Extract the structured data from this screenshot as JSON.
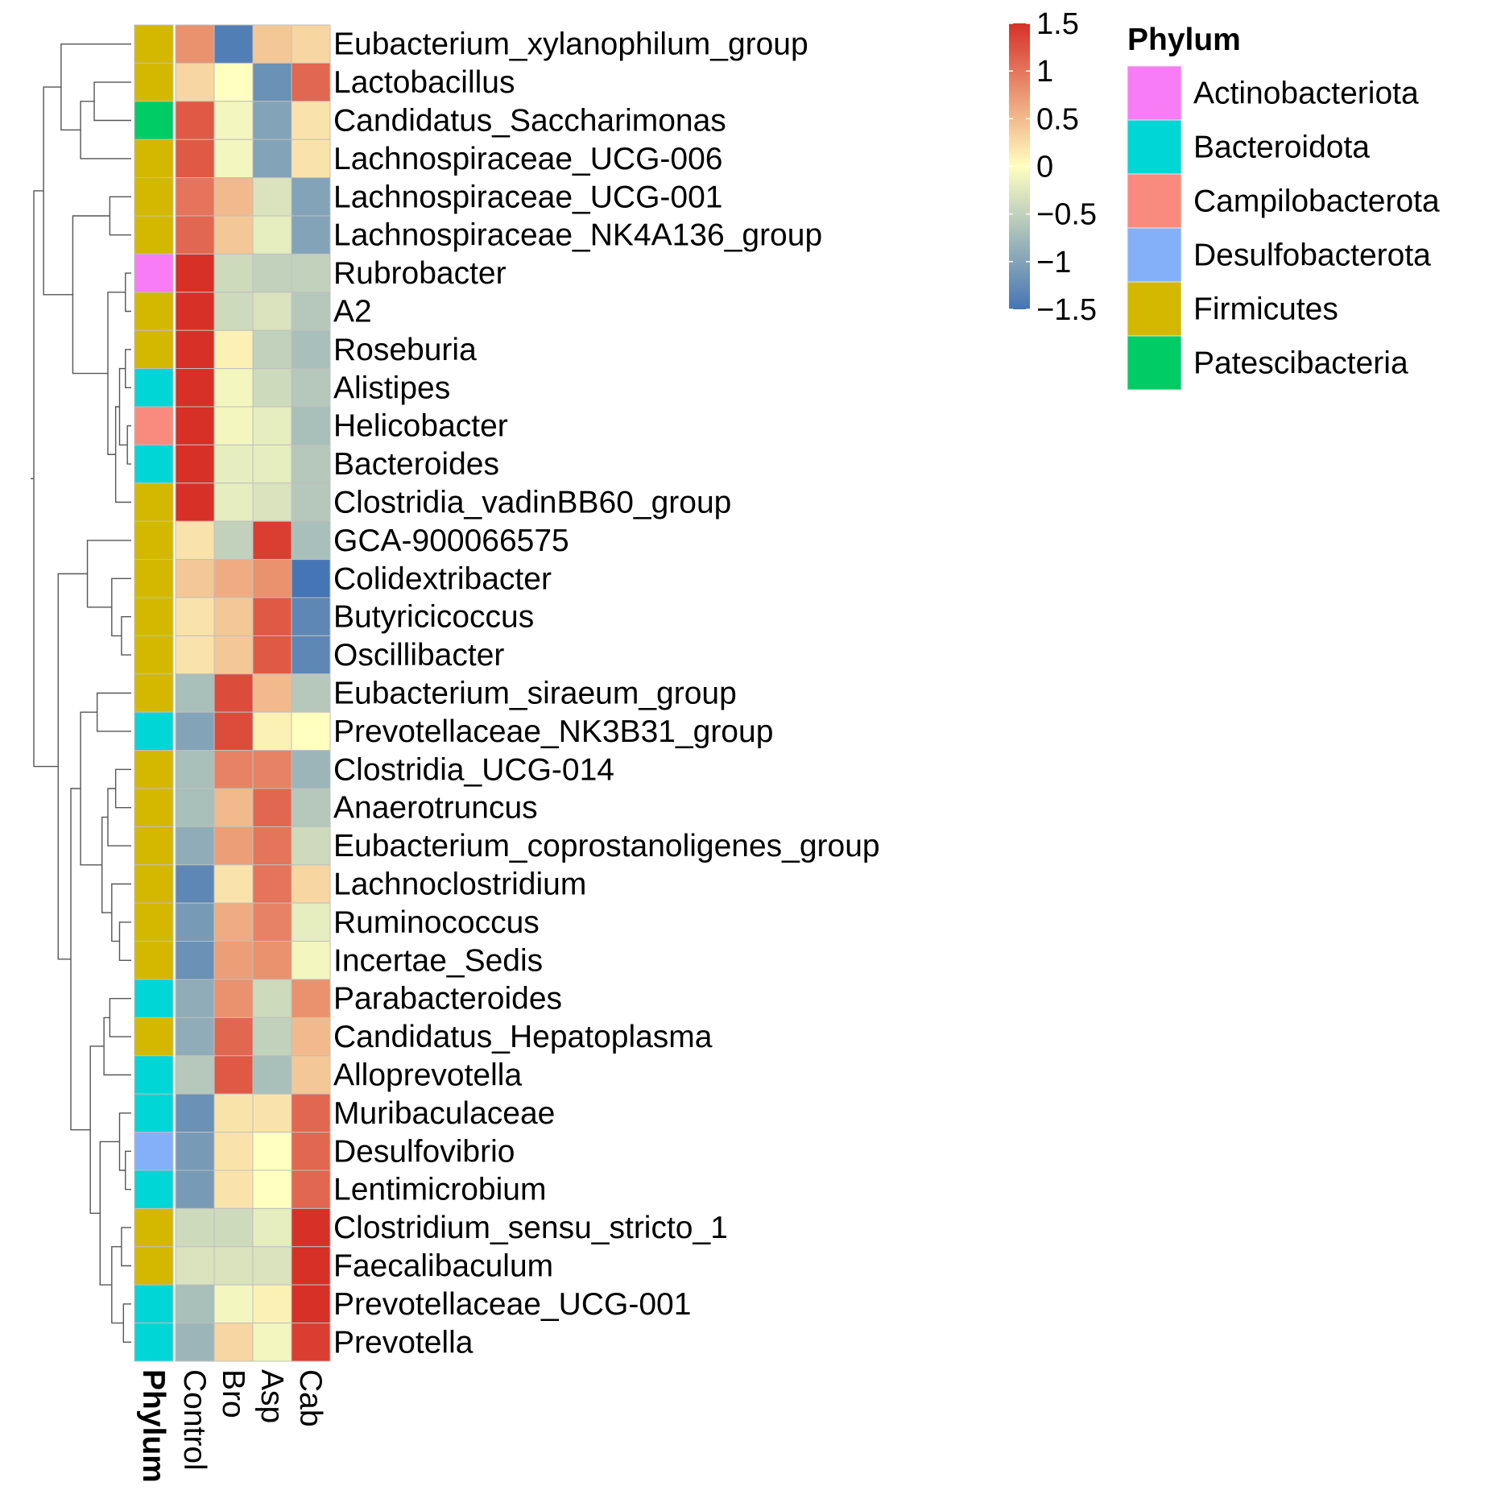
{
  "chart_data": {
    "type": "heatmap",
    "columns": [
      "Control",
      "Bro",
      "Asp",
      "Cab"
    ],
    "annotation_label": "Phylum",
    "rows": [
      {
        "name": "Eubacterium_xylanophilum_group",
        "phylum": "Firmicutes",
        "values": [
          0.8,
          -1.4,
          0.4,
          0.3
        ]
      },
      {
        "name": "Lactobacillus",
        "phylum": "Firmicutes",
        "values": [
          0.3,
          0.0,
          -1.2,
          1.1
        ]
      },
      {
        "name": "Candidatus_Saccharimonas",
        "phylum": "Patescibacteria",
        "values": [
          1.2,
          -0.1,
          -1.0,
          0.2
        ]
      },
      {
        "name": "Lachnospiraceae_UCG-006",
        "phylum": "Firmicutes",
        "values": [
          1.2,
          -0.1,
          -1.0,
          0.2
        ]
      },
      {
        "name": "Lachnospiraceae_UCG-001",
        "phylum": "Firmicutes",
        "values": [
          1.0,
          0.5,
          -0.3,
          -1.0
        ]
      },
      {
        "name": "Lachnospiraceae_NK4A136_group",
        "phylum": "Firmicutes",
        "values": [
          1.1,
          0.4,
          -0.2,
          -1.0
        ]
      },
      {
        "name": "Rubrobacter",
        "phylum": "Actinobacteriota",
        "values": [
          1.5,
          -0.4,
          -0.5,
          -0.5
        ]
      },
      {
        "name": "A2",
        "phylum": "Firmicutes",
        "values": [
          1.5,
          -0.4,
          -0.3,
          -0.6
        ]
      },
      {
        "name": "Roseburia",
        "phylum": "Firmicutes",
        "values": [
          1.5,
          0.1,
          -0.5,
          -0.7
        ]
      },
      {
        "name": "Alistipes",
        "phylum": "Bacteroidota",
        "values": [
          1.5,
          -0.1,
          -0.4,
          -0.6
        ]
      },
      {
        "name": "Helicobacter",
        "phylum": "Campilobacterota",
        "values": [
          1.5,
          -0.1,
          -0.2,
          -0.7
        ]
      },
      {
        "name": "Bacteroides",
        "phylum": "Bacteroidota",
        "values": [
          1.5,
          -0.2,
          -0.2,
          -0.6
        ]
      },
      {
        "name": "Clostridia_vadinBB60_group",
        "phylum": "Firmicutes",
        "values": [
          1.5,
          -0.2,
          -0.3,
          -0.6
        ]
      },
      {
        "name": "GCA-900066575",
        "phylum": "Firmicutes",
        "values": [
          0.2,
          -0.5,
          1.4,
          -0.7
        ]
      },
      {
        "name": "Colidextribacter",
        "phylum": "Firmicutes",
        "values": [
          0.4,
          0.6,
          0.8,
          -1.5
        ]
      },
      {
        "name": "Butyricicoccus",
        "phylum": "Firmicutes",
        "values": [
          0.2,
          0.4,
          1.2,
          -1.3
        ]
      },
      {
        "name": "Oscillibacter",
        "phylum": "Firmicutes",
        "values": [
          0.2,
          0.4,
          1.2,
          -1.3
        ]
      },
      {
        "name": "Eubacterium_siraeum_group",
        "phylum": "Firmicutes",
        "values": [
          -0.7,
          1.3,
          0.5,
          -0.6
        ]
      },
      {
        "name": "Prevotellaceae_NK3B31_group",
        "phylum": "Bacteroidota",
        "values": [
          -1.0,
          1.3,
          0.1,
          0.0
        ]
      },
      {
        "name": "Clostridia_UCG-014",
        "phylum": "Firmicutes",
        "values": [
          -0.7,
          0.9,
          0.9,
          -0.8
        ]
      },
      {
        "name": "Anaerotruncus",
        "phylum": "Firmicutes",
        "values": [
          -0.7,
          0.5,
          1.1,
          -0.6
        ]
      },
      {
        "name": "Eubacterium_coprostanoligenes_group",
        "phylum": "Firmicutes",
        "values": [
          -0.9,
          0.7,
          1.0,
          -0.4
        ]
      },
      {
        "name": "Lachnoclostridium",
        "phylum": "Firmicutes",
        "values": [
          -1.3,
          0.2,
          1.0,
          0.3
        ]
      },
      {
        "name": "Ruminococcus",
        "phylum": "Firmicutes",
        "values": [
          -1.1,
          0.6,
          0.9,
          -0.2
        ]
      },
      {
        "name": "Incertae_Sedis",
        "phylum": "Firmicutes",
        "values": [
          -1.2,
          0.7,
          0.8,
          -0.1
        ]
      },
      {
        "name": "Parabacteroides",
        "phylum": "Bacteroidota",
        "values": [
          -0.9,
          0.8,
          -0.4,
          0.8
        ]
      },
      {
        "name": "Candidatus_Hepatoplasma",
        "phylum": "Firmicutes",
        "values": [
          -0.9,
          1.1,
          -0.5,
          0.5
        ]
      },
      {
        "name": "Alloprevotella",
        "phylum": "Bacteroidota",
        "values": [
          -0.6,
          1.2,
          -0.7,
          0.4
        ]
      },
      {
        "name": "Muribaculaceae",
        "phylum": "Bacteroidota",
        "values": [
          -1.2,
          0.2,
          0.2,
          1.1
        ]
      },
      {
        "name": "Desulfovibrio",
        "phylum": "Desulfobacterota",
        "values": [
          -1.1,
          0.2,
          0.0,
          1.1
        ]
      },
      {
        "name": "Lentimicrobium",
        "phylum": "Bacteroidota",
        "values": [
          -1.1,
          0.2,
          0.0,
          1.1
        ]
      },
      {
        "name": "Clostridium_sensu_stricto_1",
        "phylum": "Firmicutes",
        "values": [
          -0.4,
          -0.4,
          -0.2,
          1.5
        ]
      },
      {
        "name": "Faecalibaculum",
        "phylum": "Firmicutes",
        "values": [
          -0.3,
          -0.3,
          -0.3,
          1.5
        ]
      },
      {
        "name": "Prevotellaceae_UCG-001",
        "phylum": "Bacteroidota",
        "values": [
          -0.7,
          -0.1,
          0.1,
          1.5
        ]
      },
      {
        "name": "Prevotella",
        "phylum": "Bacteroidota",
        "values": [
          -0.8,
          0.3,
          -0.1,
          1.4
        ]
      }
    ],
    "color_scale": {
      "breaks": [
        -1.5,
        0,
        1.5
      ],
      "colors": [
        "#4575b4",
        "#ffffbf",
        "#d73027"
      ],
      "ticks": [
        {
          "value": 1.5,
          "label": "1.5"
        },
        {
          "value": 1,
          "label": "1"
        },
        {
          "value": 0.5,
          "label": "0.5"
        },
        {
          "value": 0,
          "label": "0"
        },
        {
          "value": -0.5,
          "label": "−0.5"
        },
        {
          "value": -1,
          "label": "−1"
        },
        {
          "value": -1.5,
          "label": "−1.5"
        }
      ]
    },
    "legend": {
      "title": "Phylum",
      "entries": [
        {
          "label": "Actinobacteriota",
          "color": "#f77cf5"
        },
        {
          "label": "Bacteroidota",
          "color": "#00d6d6"
        },
        {
          "label": "Campilobacterota",
          "color": "#f98a7e"
        },
        {
          "label": "Desulfobacterota",
          "color": "#84b0f9"
        },
        {
          "label": "Firmicutes",
          "color": "#d4b800"
        },
        {
          "label": "Patescibacteria",
          "color": "#00cc66"
        }
      ]
    }
  }
}
